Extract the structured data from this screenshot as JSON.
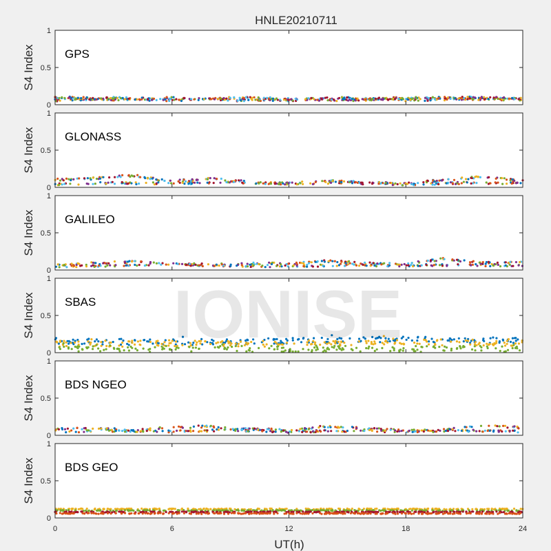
{
  "chart_data": {
    "type": "scatter",
    "title": "HNLE20210711",
    "xlabel": "UT(h)",
    "ylabel": "S4 Index",
    "xlim": [
      0,
      24
    ],
    "ylim": [
      0,
      1
    ],
    "xticks": [
      0,
      6,
      12,
      18,
      24
    ],
    "yticks": [
      0,
      0.5,
      1
    ],
    "xtick_labels": [
      "0",
      "6",
      "12",
      "18",
      "24"
    ],
    "ytick_labels": [
      "0",
      "0.5",
      "1"
    ],
    "grid": false,
    "watermark": "IONISE",
    "series_colors": [
      "#0072BD",
      "#D95319",
      "#EDB120",
      "#7E2F8E",
      "#77AC30",
      "#4DBEEE",
      "#A2142F"
    ],
    "panels": [
      {
        "label": "GPS",
        "pattern": "passes",
        "series": [
          {
            "x": [
              0,
              3,
              6,
              9,
              12,
              15,
              18,
              21,
              24
            ],
            "y": [
              0.06,
              0.09,
              0.07,
              0.08,
              0.06,
              0.07,
              0.09,
              0.08,
              0.07
            ]
          },
          {
            "x": [
              0,
              3,
              6,
              9,
              12,
              15,
              18,
              21,
              24
            ],
            "y": [
              0.08,
              0.07,
              0.09,
              0.06,
              0.07,
              0.09,
              0.06,
              0.08,
              0.09
            ]
          },
          {
            "x": [
              0,
              3,
              6,
              9,
              12,
              15,
              18,
              21,
              24
            ],
            "y": [
              0.1,
              0.08,
              0.06,
              0.09,
              0.08,
              0.06,
              0.08,
              0.1,
              0.08
            ]
          }
        ]
      },
      {
        "label": "GLONASS",
        "pattern": "passes",
        "series": [
          {
            "x": [
              0,
              2,
              4,
              6,
              8,
              10,
              12,
              14,
              16,
              18,
              20,
              22,
              24
            ],
            "y": [
              0.1,
              0.12,
              0.16,
              0.08,
              0.12,
              0.07,
              0.05,
              0.09,
              0.06,
              0.05,
              0.1,
              0.14,
              0.08
            ]
          },
          {
            "x": [
              0,
              3,
              6,
              9,
              12,
              15,
              18,
              21,
              24
            ],
            "y": [
              0.04,
              0.06,
              0.05,
              0.07,
              0.05,
              0.06,
              0.04,
              0.06,
              0.05
            ]
          }
        ]
      },
      {
        "label": "GALILEO",
        "pattern": "passes",
        "series": [
          {
            "x": [
              0,
              2,
              4,
              6,
              8,
              10,
              12,
              14,
              16,
              18,
              20,
              22,
              24
            ],
            "y": [
              0.06,
              0.09,
              0.11,
              0.08,
              0.07,
              0.09,
              0.08,
              0.12,
              0.09,
              0.08,
              0.15,
              0.09,
              0.12
            ]
          },
          {
            "x": [
              0,
              3,
              6,
              9,
              12,
              15,
              18,
              21,
              24
            ],
            "y": [
              0.05,
              0.06,
              0.07,
              0.06,
              0.05,
              0.07,
              0.06,
              0.07,
              0.06
            ]
          }
        ]
      },
      {
        "label": "SBAS",
        "pattern": "noisy",
        "series": [
          {
            "x": [
              0,
              6,
              12,
              18,
              24
            ],
            "y": [
              0.15,
              0.14,
              0.16,
              0.18,
              0.16
            ]
          },
          {
            "x": [
              0,
              6,
              12,
              18,
              24
            ],
            "y": [
              0.12,
              0.12,
              0.12,
              0.14,
              0.13
            ]
          },
          {
            "x": [
              0,
              6,
              12,
              18,
              24
            ],
            "y": [
              0.05,
              0.05,
              0.05,
              0.05,
              0.05
            ]
          }
        ]
      },
      {
        "label": "BDS NGEO",
        "pattern": "passes",
        "series": [
          {
            "x": [
              0,
              2,
              4,
              6,
              8,
              10,
              12,
              14,
              16,
              18,
              20,
              22,
              24
            ],
            "y": [
              0.08,
              0.1,
              0.06,
              0.11,
              0.12,
              0.08,
              0.07,
              0.12,
              0.09,
              0.06,
              0.07,
              0.14,
              0.1
            ]
          },
          {
            "x": [
              0,
              3,
              6,
              9,
              12,
              15,
              18,
              21,
              24
            ],
            "y": [
              0.05,
              0.06,
              0.05,
              0.07,
              0.05,
              0.06,
              0.05,
              0.06,
              0.05
            ]
          }
        ]
      },
      {
        "label": "BDS GEO",
        "pattern": "flat",
        "series": [
          {
            "x": [
              0,
              24
            ],
            "y": [
              0.12,
              0.12
            ]
          },
          {
            "x": [
              0,
              24
            ],
            "y": [
              0.1,
              0.1
            ]
          },
          {
            "x": [
              0,
              24
            ],
            "y": [
              0.08,
              0.08
            ]
          },
          {
            "x": [
              0,
              24
            ],
            "y": [
              0.06,
              0.06
            ]
          }
        ]
      }
    ]
  }
}
